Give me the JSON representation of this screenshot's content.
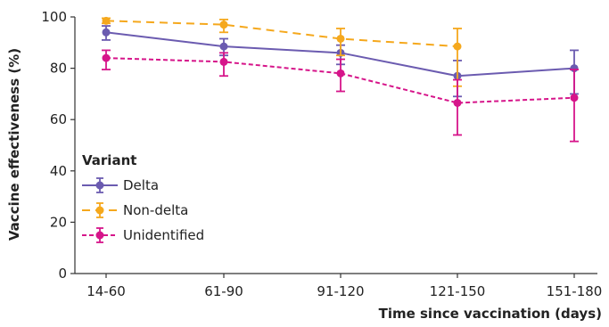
{
  "chart_data": {
    "type": "line",
    "categories": [
      "14-60",
      "61-90",
      "91-120",
      "121-150",
      "151-180"
    ],
    "xlabel": "Time since vaccination (days)",
    "ylabel": "Vaccine effectiveness (%)",
    "ylim": [
      0,
      100
    ],
    "yticks": [
      0,
      20,
      40,
      60,
      80,
      100
    ],
    "grid": false,
    "legend": {
      "title": "Variant",
      "placement": "left-middle"
    },
    "series": [
      {
        "name": "Delta",
        "color": "#6b5bb0",
        "line_style": "solid",
        "x_offset": 0,
        "values": [
          94,
          88.5,
          86,
          77,
          80
        ],
        "ci_low": [
          91,
          85,
          81.5,
          69,
          70
        ],
        "ci_high": [
          96.5,
          91.5,
          89,
          83,
          87
        ]
      },
      {
        "name": "Non-delta",
        "color": "#f5a81d",
        "line_style": "dashed",
        "x_offset": 1,
        "values": [
          98.5,
          97,
          91.5,
          88.5,
          null
        ],
        "ci_low": [
          97.5,
          94,
          85,
          73,
          null
        ],
        "ci_high": [
          99.5,
          99,
          95.5,
          95.5,
          null
        ]
      },
      {
        "name": "Unidentified",
        "color": "#d6158a",
        "line_style": "dotted",
        "x_offset": 2,
        "values": [
          84,
          82.5,
          78,
          66.5,
          68.5
        ],
        "ci_low": [
          79.5,
          77,
          71,
          54,
          51.5
        ],
        "ci_high": [
          87,
          86,
          83.5,
          75.5,
          79.5
        ]
      }
    ]
  }
}
